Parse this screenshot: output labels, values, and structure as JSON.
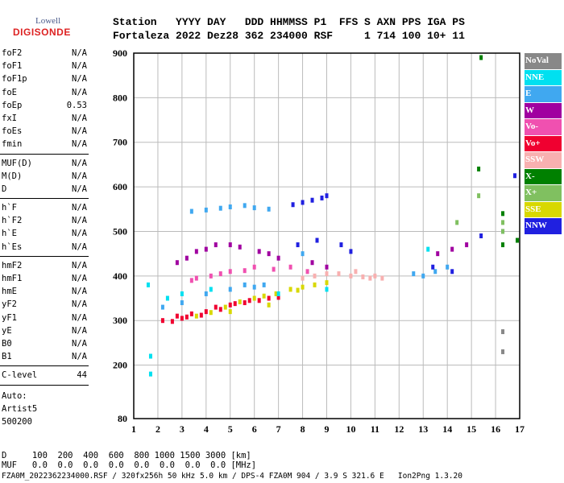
{
  "logo": {
    "brand": "Lowell",
    "product": "DIGISONDE"
  },
  "header": {
    "line1": "Station   YYYY DAY   DDD HHMMSS P1  FFS S AXN PPS IGA PS",
    "line2": "Fortaleza 2022 Dez28 362 234000 RSF     1 714 100 10+ 11"
  },
  "params": {
    "group1": [
      {
        "name": "foF2",
        "value": "N/A"
      },
      {
        "name": "foF1",
        "value": "N/A"
      },
      {
        "name": "foF1p",
        "value": "N/A"
      },
      {
        "name": "foE",
        "value": "N/A"
      },
      {
        "name": "foEp",
        "value": "0.53"
      },
      {
        "name": "fxI",
        "value": "N/A"
      },
      {
        "name": "foEs",
        "value": "N/A"
      },
      {
        "name": "fmin",
        "value": "N/A"
      }
    ],
    "group2": [
      {
        "name": "MUF(D)",
        "value": "N/A"
      },
      {
        "name": "M(D)",
        "value": "N/A"
      },
      {
        "name": "D",
        "value": "N/A"
      }
    ],
    "group3": [
      {
        "name": "h`F",
        "value": "N/A"
      },
      {
        "name": "h`F2",
        "value": "N/A"
      },
      {
        "name": "h`E",
        "value": "N/A"
      },
      {
        "name": "h`Es",
        "value": "N/A"
      }
    ],
    "group4": [
      {
        "name": "hmF2",
        "value": "N/A"
      },
      {
        "name": "hmF1",
        "value": "N/A"
      },
      {
        "name": "hmE",
        "value": "N/A"
      },
      {
        "name": "yF2",
        "value": "N/A"
      },
      {
        "name": "yF1",
        "value": "N/A"
      },
      {
        "name": "yE",
        "value": "N/A"
      },
      {
        "name": "B0",
        "value": "N/A"
      },
      {
        "name": "B1",
        "value": "N/A"
      }
    ],
    "clevel": {
      "name": "C-level",
      "value": "44"
    }
  },
  "autoscale": {
    "line1": "Auto:",
    "line2": "Artist5",
    "line3": "500200"
  },
  "bottom": {
    "d_row": "D     100  200  400  600  800 1000 1500 3000 [km]",
    "muf_row": "MUF   0.0  0.0  0.0  0.0  0.0  0.0  0.0  0.0 [MHz]",
    "footer": "FZA0M_2022362234000.RSF / 320fx256h 50 kHz 5.0 km / DPS-4 FZA0M 904 / 3.9 S 321.6 E   Ion2Png 1.3.20"
  },
  "legend": [
    {
      "label": "NoVal",
      "color": "#888888"
    },
    {
      "label": "NNE",
      "color": "#00e0f0"
    },
    {
      "label": "E",
      "color": "#40a8f0"
    },
    {
      "label": "W",
      "color": "#a000a0"
    },
    {
      "label": "Vo-",
      "color": "#f050b0"
    },
    {
      "label": "Vo+",
      "color": "#f00030"
    },
    {
      "label": "SSW",
      "color": "#f8b0b0"
    },
    {
      "label": "X-",
      "color": "#008000"
    },
    {
      "label": "X+",
      "color": "#80c060"
    },
    {
      "label": "SSE",
      "color": "#d8d800"
    },
    {
      "label": "NNW",
      "color": "#2020e0"
    }
  ],
  "chart_data": {
    "type": "scatter",
    "title": "",
    "xlabel": "",
    "ylabel": "",
    "xlim": [
      1,
      17
    ],
    "ylim": [
      80,
      900
    ],
    "xticks": [
      1,
      2,
      3,
      4,
      5,
      6,
      7,
      8,
      9,
      10,
      11,
      12,
      13,
      14,
      15,
      16,
      17
    ],
    "yticks": [
      80,
      200,
      300,
      400,
      500,
      600,
      700,
      800,
      900
    ],
    "grid": true,
    "series": [
      {
        "name": "Vo+",
        "points": [
          [
            2.2,
            300
          ],
          [
            2.8,
            310
          ],
          [
            3.4,
            315
          ],
          [
            4.0,
            320
          ],
          [
            4.6,
            325
          ],
          [
            5.0,
            335
          ],
          [
            5.6,
            340
          ],
          [
            6.2,
            345
          ],
          [
            6.6,
            350
          ],
          [
            3.0,
            305
          ],
          [
            3.8,
            312
          ],
          [
            4.4,
            330
          ],
          [
            5.2,
            338
          ],
          [
            5.8,
            345
          ],
          [
            7.0,
            352
          ],
          [
            2.6,
            298
          ],
          [
            3.2,
            308
          ]
        ]
      },
      {
        "name": "SSE",
        "points": [
          [
            3.6,
            310
          ],
          [
            4.2,
            318
          ],
          [
            4.8,
            330
          ],
          [
            5.4,
            342
          ],
          [
            6.0,
            350
          ],
          [
            6.4,
            355
          ],
          [
            6.9,
            360
          ],
          [
            7.5,
            370
          ],
          [
            8.0,
            375
          ],
          [
            8.5,
            380
          ],
          [
            9.0,
            385
          ],
          [
            5.0,
            320
          ],
          [
            6.6,
            335
          ],
          [
            7.8,
            368
          ]
        ]
      },
      {
        "name": "SSW",
        "points": [
          [
            8.0,
            395
          ],
          [
            8.5,
            400
          ],
          [
            9.0,
            405
          ],
          [
            9.5,
            405
          ],
          [
            10.0,
            400
          ],
          [
            10.5,
            398
          ],
          [
            11.0,
            400
          ],
          [
            11.3,
            395
          ],
          [
            10.2,
            410
          ],
          [
            10.8,
            395
          ]
        ]
      },
      {
        "name": "E",
        "points": [
          [
            2.2,
            330
          ],
          [
            3.0,
            340
          ],
          [
            4.0,
            360
          ],
          [
            5.0,
            370
          ],
          [
            5.6,
            380
          ],
          [
            6.0,
            375
          ],
          [
            6.4,
            380
          ],
          [
            3.4,
            545
          ],
          [
            4.0,
            548
          ],
          [
            4.6,
            552
          ],
          [
            5.0,
            555
          ],
          [
            5.6,
            558
          ],
          [
            6.0,
            553
          ],
          [
            6.6,
            550
          ],
          [
            13.0,
            400
          ],
          [
            13.5,
            410
          ],
          [
            14.0,
            420
          ],
          [
            12.6,
            405
          ],
          [
            8.0,
            450
          ]
        ]
      },
      {
        "name": "W",
        "points": [
          [
            2.8,
            430
          ],
          [
            3.2,
            440
          ],
          [
            3.6,
            455
          ],
          [
            4.0,
            460
          ],
          [
            4.4,
            470
          ],
          [
            5.0,
            470
          ],
          [
            5.4,
            465
          ],
          [
            6.2,
            455
          ],
          [
            6.6,
            450
          ],
          [
            7.0,
            440
          ],
          [
            8.4,
            430
          ],
          [
            9.0,
            420
          ],
          [
            13.6,
            450
          ],
          [
            14.2,
            460
          ],
          [
            14.8,
            470
          ]
        ]
      },
      {
        "name": "NNW",
        "points": [
          [
            7.6,
            560
          ],
          [
            8.0,
            565
          ],
          [
            8.4,
            570
          ],
          [
            8.8,
            575
          ],
          [
            9.0,
            580
          ],
          [
            7.8,
            470
          ],
          [
            8.6,
            480
          ],
          [
            9.6,
            470
          ],
          [
            10.0,
            455
          ],
          [
            13.4,
            420
          ],
          [
            14.2,
            410
          ],
          [
            15.4,
            490
          ],
          [
            16.3,
            500
          ],
          [
            16.8,
            625
          ]
        ]
      },
      {
        "name": "Vo-",
        "points": [
          [
            3.4,
            390
          ],
          [
            4.2,
            400
          ],
          [
            5.0,
            410
          ],
          [
            6.0,
            420
          ],
          [
            6.8,
            415
          ],
          [
            7.5,
            420
          ],
          [
            8.2,
            410
          ],
          [
            3.6,
            395
          ],
          [
            4.6,
            405
          ],
          [
            5.6,
            412
          ]
        ]
      },
      {
        "name": "NNE",
        "points": [
          [
            1.6,
            380
          ],
          [
            1.7,
            180
          ],
          [
            1.7,
            220
          ],
          [
            2.4,
            350
          ],
          [
            3.0,
            360
          ],
          [
            4.2,
            370
          ],
          [
            7.0,
            360
          ],
          [
            9.0,
            370
          ],
          [
            13.2,
            460
          ]
        ]
      },
      {
        "name": "X-",
        "points": [
          [
            15.3,
            640
          ],
          [
            16.3,
            540
          ],
          [
            16.3,
            470
          ],
          [
            16.9,
            480
          ],
          [
            15.4,
            890
          ]
        ]
      },
      {
        "name": "X+",
        "points": [
          [
            16.3,
            500
          ],
          [
            16.3,
            520
          ],
          [
            15.3,
            580
          ],
          [
            14.4,
            520
          ]
        ]
      },
      {
        "name": "NoVal",
        "points": [
          [
            16.3,
            275
          ],
          [
            16.3,
            230
          ]
        ]
      }
    ]
  }
}
